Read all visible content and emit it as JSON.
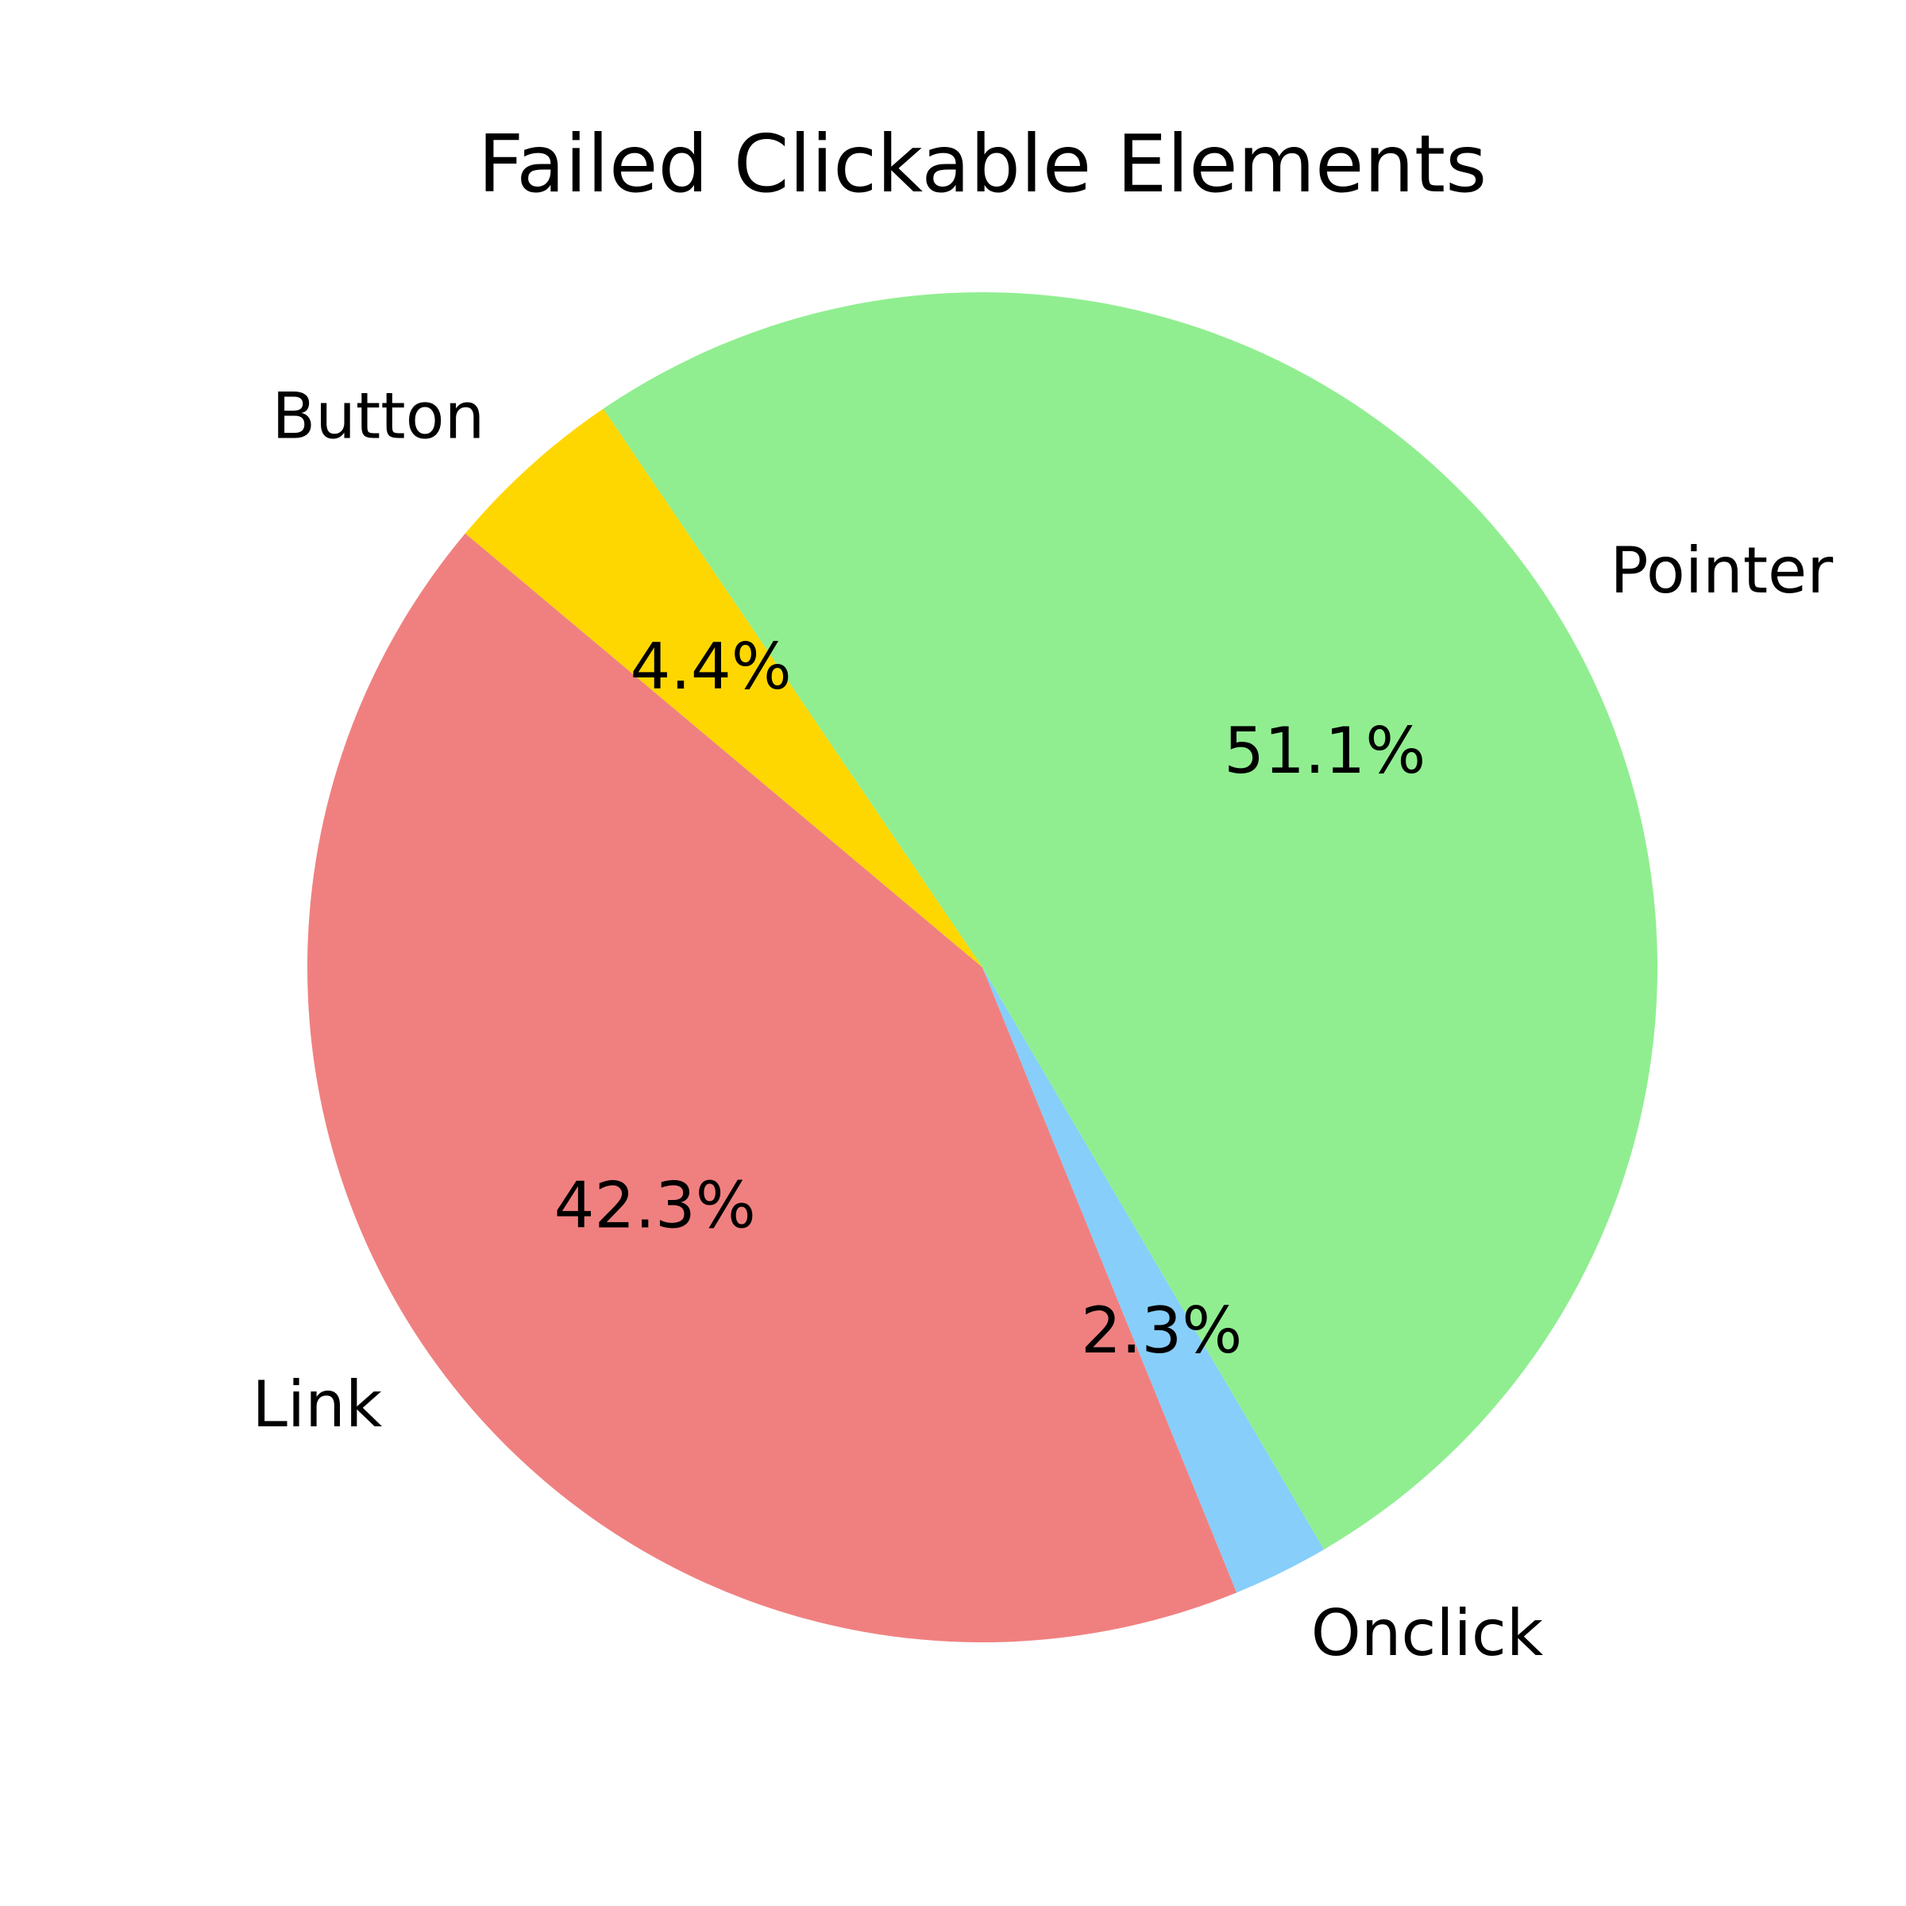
{
  "chart_data": {
    "type": "pie",
    "title": "Failed Clickable Elements",
    "start_angle_deg": 140,
    "direction": "counterclockwise",
    "autopct_format": "%.1f%%",
    "legend": "none",
    "slices": [
      {
        "label": "Link",
        "value": 42.3,
        "pct_text": "42.3%",
        "color": "#F08080"
      },
      {
        "label": "Onclick",
        "value": 2.3,
        "pct_text": "2.3%",
        "color": "#87CEFA"
      },
      {
        "label": "Pointer",
        "value": 51.1,
        "pct_text": "51.1%",
        "color": "#90EE90"
      },
      {
        "label": "Button",
        "value": 4.4,
        "pct_text": "4.4%",
        "color": "#FFD700"
      }
    ]
  }
}
